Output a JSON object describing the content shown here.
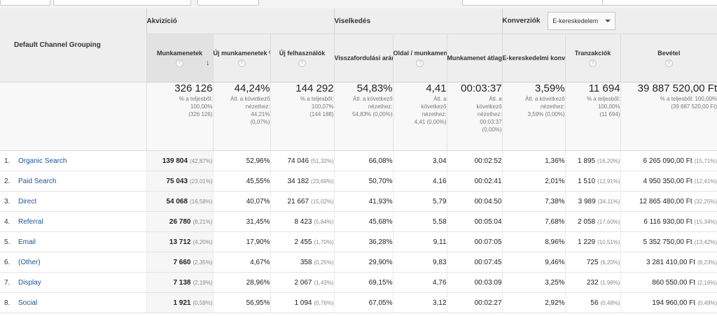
{
  "groups": {
    "dimension_label": "Default Channel Grouping",
    "acquisition": "Akvizíció",
    "behavior": "Viselkedés",
    "conversions": "Konverziók",
    "conversions_select": "E-kereskedelem"
  },
  "columns": [
    {
      "label": "Munkamenetek"
    },
    {
      "label": "Új munkamenetek %-os aránya"
    },
    {
      "label": "Új felhasználók"
    },
    {
      "label": "Visszafordulási arány"
    },
    {
      "label": "Oldal / munkamenet"
    },
    {
      "label": "Munkamenet átlagos hossza"
    },
    {
      "label": "E-kereskedelmi konverziós arány"
    },
    {
      "label": "Tranzakciók"
    },
    {
      "label": "Bevétel"
    }
  ],
  "totals": [
    {
      "value": "326 126",
      "sub": "% a teljesből:\n100,00%\n(326 126)"
    },
    {
      "value": "44,24%",
      "sub": "Átl. a következő\nnézethez:\n44,21%\n(0,07%)"
    },
    {
      "value": "144 292",
      "sub": "% a teljesből:\n100,07%\n(144 188)"
    },
    {
      "value": "54,83%",
      "sub": "Átl. a következő\nnézethez:\n54,83% (0,00%)"
    },
    {
      "value": "4,41",
      "sub": "Átl. a\nkövetkező\nnézethez:\n4,41 (0,00%)"
    },
    {
      "value": "00:03:37",
      "sub": "Átl. a\nkövetkező\nnézethez:\n00:03:37\n(0,00%)"
    },
    {
      "value": "3,59%",
      "sub": "Átl. a következő\nnézethez:\n3,59% (0,00%)"
    },
    {
      "value": "11 694",
      "sub": "% a teljesből:\n100,00%\n(11 694)"
    },
    {
      "value": "39 887 520,00 Ft",
      "sub": "% a teljesből: 100,00%\n(39 887 520,00 Ft)"
    }
  ],
  "rows": [
    {
      "rank": "1.",
      "channel": "Organic Search",
      "sessions": "139 804",
      "sessions_pct": "(42,87%)",
      "new_pct": "52,96%",
      "new_users": "74 046",
      "new_users_pct": "(51,32%)",
      "bounce": "66,08%",
      "pages": "3,04",
      "duration": "00:02:52",
      "conv": "1,36%",
      "trans": "1 895",
      "trans_pct": "(16,20%)",
      "revenue": "6 265 090,00 Ft",
      "revenue_pct": "(15,71%)"
    },
    {
      "rank": "2.",
      "channel": "Paid Search",
      "sessions": "75 043",
      "sessions_pct": "(23,01%)",
      "new_pct": "45,55%",
      "new_users": "34 182",
      "new_users_pct": "(23,69%)",
      "bounce": "50,70%",
      "pages": "4,16",
      "duration": "00:02:41",
      "conv": "2,01%",
      "trans": "1 510",
      "trans_pct": "(12,91%)",
      "revenue": "4 950 350,00 Ft",
      "revenue_pct": "(12,41%)"
    },
    {
      "rank": "3.",
      "channel": "Direct",
      "sessions": "54 068",
      "sessions_pct": "(16,58%)",
      "new_pct": "40,07%",
      "new_users": "21 667",
      "new_users_pct": "(15,02%)",
      "bounce": "41,93%",
      "pages": "5,79",
      "duration": "00:04:50",
      "conv": "7,38%",
      "trans": "3 989",
      "trans_pct": "(34,11%)",
      "revenue": "12 865 480,00 Ft",
      "revenue_pct": "(32,25%)"
    },
    {
      "rank": "4.",
      "channel": "Referral",
      "sessions": "26 780",
      "sessions_pct": "(8,21%)",
      "new_pct": "31,45%",
      "new_users": "8 423",
      "new_users_pct": "(5,84%)",
      "bounce": "45,68%",
      "pages": "5,58",
      "duration": "00:05:04",
      "conv": "7,68%",
      "trans": "2 058",
      "trans_pct": "(17,60%)",
      "revenue": "6 116 930,00 Ft",
      "revenue_pct": "(15,34%)"
    },
    {
      "rank": "5.",
      "channel": "Email",
      "sessions": "13 712",
      "sessions_pct": "(4,20%)",
      "new_pct": "17,90%",
      "new_users": "2 455",
      "new_users_pct": "(1,70%)",
      "bounce": "36,28%",
      "pages": "9,11",
      "duration": "00:07:05",
      "conv": "8,96%",
      "trans": "1 229",
      "trans_pct": "(10,51%)",
      "revenue": "5 352 750,00 Ft",
      "revenue_pct": "(13,42%)"
    },
    {
      "rank": "6.",
      "channel": "(Other)",
      "sessions": "7 660",
      "sessions_pct": "(2,35%)",
      "new_pct": "4,67%",
      "new_users": "358",
      "new_users_pct": "(0,25%)",
      "bounce": "29,90%",
      "pages": "9,83",
      "duration": "00:07:45",
      "conv": "9,46%",
      "trans": "725",
      "trans_pct": "(6,20%)",
      "revenue": "3 281 410,00 Ft",
      "revenue_pct": "(8,23%)"
    },
    {
      "rank": "7.",
      "channel": "Display",
      "sessions": "7 138",
      "sessions_pct": "(2,19%)",
      "new_pct": "28,96%",
      "new_users": "2 067",
      "new_users_pct": "(1,43%)",
      "bounce": "69,15%",
      "pages": "4,76",
      "duration": "00:03:09",
      "conv": "3,25%",
      "trans": "232",
      "trans_pct": "(1,98%)",
      "revenue": "860 550,00 Ft",
      "revenue_pct": "(2,16%)"
    },
    {
      "rank": "8.",
      "channel": "Social",
      "sessions": "1 921",
      "sessions_pct": "(0,59%)",
      "new_pct": "56,95%",
      "new_users": "1 094",
      "new_users_pct": "(0,76%)",
      "bounce": "67,05%",
      "pages": "3,12",
      "duration": "00:02:27",
      "conv": "2,92%",
      "trans": "56",
      "trans_pct": "(0,48%)",
      "revenue": "194 960,00 Ft",
      "revenue_pct": "(0,49%)"
    }
  ],
  "help_glyph": "?",
  "sort_glyph": "↓",
  "icons": {
    "sort": "arrow-down-icon",
    "help": "question-icon",
    "dropdown": "chevron-down-icon"
  }
}
